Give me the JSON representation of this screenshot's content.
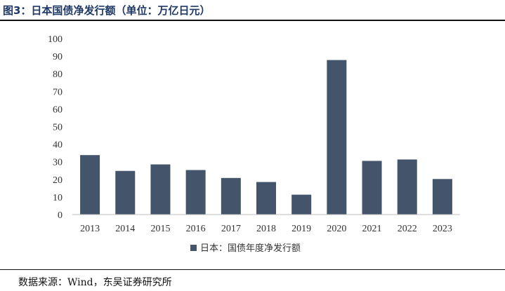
{
  "figure": {
    "title": "图3：日本国债净发行额（单位：万亿日元）",
    "source": "数据来源：Wind，东吴证券研究所"
  },
  "chart_data": {
    "type": "bar",
    "categories": [
      "2013",
      "2014",
      "2015",
      "2016",
      "2017",
      "2018",
      "2019",
      "2020",
      "2021",
      "2022",
      "2023"
    ],
    "series": [
      {
        "name": "日本：国债年度净发行额",
        "values": [
          33.8,
          24.8,
          28.5,
          25.3,
          20.8,
          18.5,
          11.3,
          87.8,
          30.5,
          31.3,
          20.2
        ]
      }
    ],
    "ylim": [
      0,
      100
    ],
    "yticks": [
      0,
      10,
      20,
      30,
      40,
      50,
      60,
      70,
      80,
      90,
      100
    ],
    "grid": false,
    "legend_position": "bottom",
    "colors": {
      "bar": "#44546a",
      "axis": "#bfbfbf"
    }
  }
}
